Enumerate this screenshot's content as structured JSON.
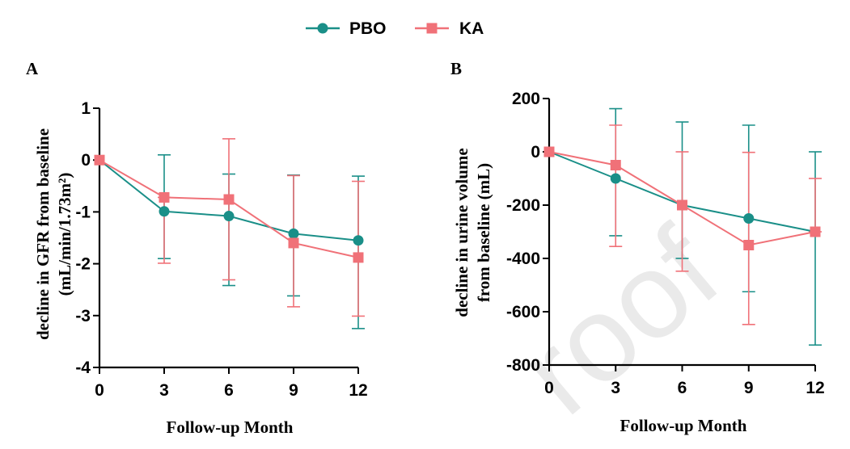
{
  "legend": {
    "items": [
      {
        "label": "PBO",
        "color": "#1a8f88",
        "marker": "circle"
      },
      {
        "label": "KA",
        "color": "#f07178",
        "marker": "square"
      }
    ]
  },
  "watermark": "roof",
  "chart_data": [
    {
      "panel": "A",
      "type": "line",
      "xlabel": "Follow-up Month",
      "ylabel_line1": "decline in GFR from baseline",
      "ylabel_line2": "(mL/min/1.73m²)",
      "x": [
        0,
        3,
        6,
        9,
        12
      ],
      "x_ticks": [
        0,
        3,
        6,
        9,
        12
      ],
      "y_ticks": [
        1,
        0,
        -1,
        -2,
        -3,
        -4
      ],
      "ylim": [
        -4,
        1
      ],
      "xlim": [
        0,
        12
      ],
      "series": [
        {
          "name": "PBO",
          "color": "#1a8f88",
          "marker": "circle",
          "values": [
            0,
            -0.99,
            -1.08,
            -1.42,
            -1.55
          ],
          "err_low": [
            0,
            -1.9,
            -2.42,
            -2.62,
            -3.25
          ],
          "err_high": [
            0,
            0.1,
            -0.27,
            -0.29,
            -0.31
          ]
        },
        {
          "name": "KA",
          "color": "#f07178",
          "marker": "square",
          "values": [
            0,
            -0.72,
            -0.76,
            -1.6,
            -1.88
          ],
          "err_low": [
            0,
            -1.99,
            -2.31,
            -2.83,
            -3.01
          ],
          "err_high": [
            0,
            -0.72,
            0.41,
            -0.3,
            -0.41
          ]
        }
      ]
    },
    {
      "panel": "B",
      "type": "line",
      "xlabel": "Follow-up Month",
      "ylabel_line1": "decline in urine volume",
      "ylabel_line2": "from baseline (mL)",
      "x": [
        0,
        3,
        6,
        9,
        12
      ],
      "x_ticks": [
        0,
        3,
        6,
        9,
        12
      ],
      "y_ticks": [
        200,
        0,
        -200,
        -400,
        -600,
        -800
      ],
      "ylim": [
        -800,
        200
      ],
      "xlim": [
        0,
        12
      ],
      "series": [
        {
          "name": "PBO",
          "color": "#1a8f88",
          "marker": "circle",
          "values": [
            0,
            -100,
            -200,
            -250,
            -300
          ],
          "err_low": [
            0,
            -315,
            -400,
            -525,
            -725
          ],
          "err_high": [
            0,
            162,
            112,
            100,
            0
          ]
        },
        {
          "name": "KA",
          "color": "#f07178",
          "marker": "square",
          "values": [
            0,
            -50,
            -200,
            -350,
            -300
          ],
          "err_low": [
            0,
            -355,
            -448,
            -648,
            -300
          ],
          "err_high": [
            0,
            100,
            0,
            -2,
            -100
          ]
        }
      ]
    }
  ]
}
